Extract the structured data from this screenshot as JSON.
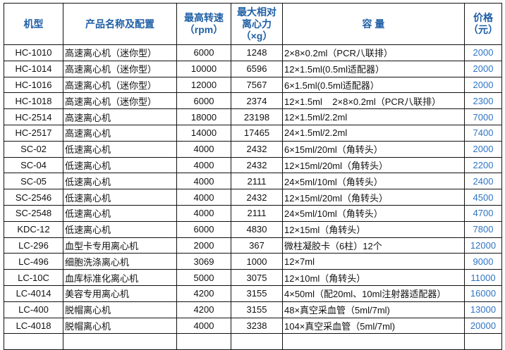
{
  "headers": [
    "机型",
    "产品名称及配置",
    "最高转速\n（rpm）",
    "最大相对\n离心力\n（×g）",
    "容  量",
    "价格\n（元）"
  ],
  "rows": [
    [
      "HC-1010",
      "高速离心机（迷你型）",
      "6000",
      "1248",
      "2×8×0.2ml（PCR八联排）",
      "2000"
    ],
    [
      "HC-1014",
      "高速离心机（迷你型）",
      "10000",
      "6596",
      "12×1.5ml(0.5ml适配器）",
      "2000"
    ],
    [
      "HC-1016",
      "高速离心机（迷你型）",
      "12000",
      "7567",
      "6×1.5ml(0.5ml适配器）",
      "2000"
    ],
    [
      "HC-1018",
      "高速离心机（迷你型）",
      "6000",
      "2374",
      "12×1.5ml    2×8×0.2ml（PCR八联排）",
      "2300"
    ],
    [
      "HC-2514",
      "高速离心机",
      "18000",
      "23198",
      "12×1.5ml/2.2ml",
      "7000"
    ],
    [
      "HC-2517",
      "高速离心机",
      "14000",
      "17465",
      "24×1.5ml/2.2ml",
      "7400"
    ],
    [
      "SC-02",
      "低速离心机",
      "4000",
      "2432",
      "6×15ml/20ml（角转头）",
      "2000"
    ],
    [
      "SC-04",
      "低速离心机",
      "4000",
      "2432",
      "12×15ml/20ml（角转头）",
      "2200"
    ],
    [
      "SC-05",
      "低速离心机",
      "4000",
      "2111",
      "24×5ml/10ml（角转头）",
      "2400"
    ],
    [
      "SC-2546",
      "低速离心机",
      "4000",
      "2432",
      "12×15ml/20ml（角转头）",
      "4500"
    ],
    [
      "SC-2548",
      "低速离心机",
      "4000",
      "2111",
      "24×5ml/10ml（角转头）",
      "4700"
    ],
    [
      "KDC-12",
      "低速离心机",
      "6000",
      "4830",
      "12×15ml（角转头）",
      "7800"
    ],
    [
      "LC-296",
      "血型卡专用离心机",
      "2000",
      "367",
      "微柱凝胶卡（6柱）12个",
      "12000"
    ],
    [
      "LC-496",
      "细胞洗涤离心机",
      "3069",
      "1000",
      "12×7ml",
      "9000"
    ],
    [
      "LC-10C",
      "血库标准化离心机",
      "5000",
      "3075",
      "12×10ml（角转头）",
      "11000"
    ],
    [
      "LC-4014",
      "美容专用离心机",
      "4200",
      "3155",
      "4×50ml（配20ml、10ml注射器适配器）",
      "16000"
    ],
    [
      "LC-400",
      "脱帽离心机",
      "4200",
      "3155",
      "48×真空采血管（5ml/7ml)",
      "13000"
    ],
    [
      "LC-4018",
      "脱帽离心机",
      "4000",
      "3238",
      "104×真空采血管（5ml/7ml)",
      "20000"
    ],
    [
      "",
      "",
      "",
      "",
      "",
      ""
    ]
  ],
  "colors": {
    "header": "#1f5fa6",
    "price": "#2f74c4"
  }
}
